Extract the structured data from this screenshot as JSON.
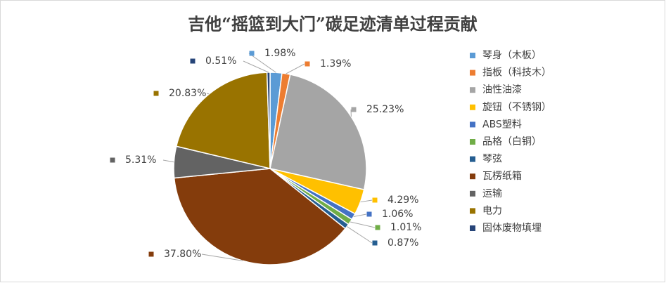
{
  "chart_data": {
    "type": "pie",
    "title": "吉他“摇篮到大门”碳足迹清单过程贡献",
    "categories": [
      "琴身（木板）",
      "指板（科技木）",
      "油性油漆",
      "旋钮（不锈钢）",
      "ABS塑料",
      "品格（白铜）",
      "琴弦",
      "瓦楞纸箱",
      "运输",
      "电力",
      "固体废物填埋"
    ],
    "values": [
      1.98,
      1.39,
      25.23,
      4.29,
      1.06,
      1.01,
      0.87,
      37.8,
      5.31,
      20.83,
      0.51
    ],
    "value_labels": [
      "1.98%",
      "1.39%",
      "25.23%",
      "4.29%",
      "1.06%",
      "1.01%",
      "0.87%",
      "37.80%",
      "5.31%",
      "20.83%",
      "0.51%"
    ],
    "colors": [
      "#5b9bd5",
      "#ed7d31",
      "#a5a5a5",
      "#ffc000",
      "#4472c4",
      "#70ad47",
      "#255e91",
      "#843c0c",
      "#636363",
      "#997300",
      "#264478"
    ],
    "legend": "right"
  }
}
